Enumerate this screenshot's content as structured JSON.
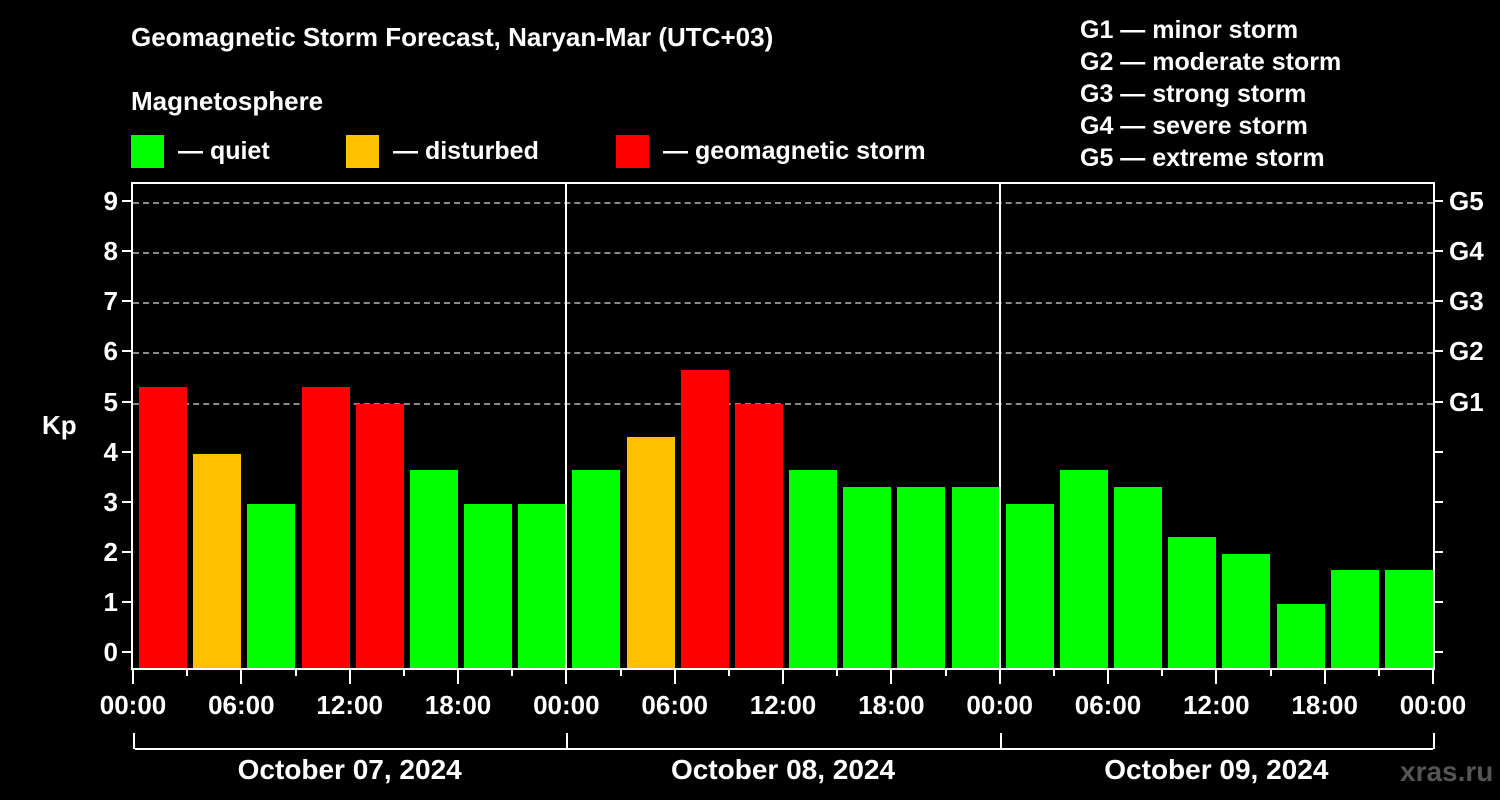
{
  "header": {
    "title": "Geomagnetic Storm Forecast, Naryan-Mar (UTC+03)",
    "subtitle": "Magnetosphere"
  },
  "legend": {
    "items": [
      {
        "label": "— quiet",
        "color": "#00ff00"
      },
      {
        "label": "— disturbed",
        "color": "#ffc000"
      },
      {
        "label": "— geomagnetic storm",
        "color": "#ff0000"
      }
    ]
  },
  "scale_legend": [
    "G1 — minor storm",
    "G2 — moderate storm",
    "G3 — strong storm",
    "G4 — severe storm",
    "G5 — extreme storm"
  ],
  "axis": {
    "ylabel": "Kp",
    "yticks": [
      "0",
      "1",
      "2",
      "3",
      "4",
      "5",
      "6",
      "7",
      "8",
      "9"
    ],
    "right_ticks": [
      "G1",
      "G2",
      "G3",
      "G4",
      "G5"
    ],
    "xticks": [
      "00:00",
      "06:00",
      "12:00",
      "18:00",
      "00:00",
      "06:00",
      "12:00",
      "18:00",
      "00:00",
      "06:00",
      "12:00",
      "18:00",
      "00:00"
    ],
    "dates": [
      "October 07, 2024",
      "October 08, 2024",
      "October 09, 2024"
    ]
  },
  "watermark": "xras.ru",
  "chart_data": {
    "type": "bar",
    "title": "Geomagnetic Storm Forecast, Naryan-Mar (UTC+03)",
    "xlabel": "",
    "ylabel": "Kp",
    "ylim": [
      0,
      9
    ],
    "grid": true,
    "legend_position": "top",
    "categories": [
      "Oct 07 00-03",
      "Oct 07 03-06",
      "Oct 07 06-09",
      "Oct 07 09-12",
      "Oct 07 12-15",
      "Oct 07 15-18",
      "Oct 07 18-21",
      "Oct 07 21-24",
      "Oct 08 00-03",
      "Oct 08 03-06",
      "Oct 08 06-09",
      "Oct 08 09-12",
      "Oct 08 12-15",
      "Oct 08 15-18",
      "Oct 08 18-21",
      "Oct 08 21-24",
      "Oct 09 00-03",
      "Oct 09 03-06",
      "Oct 09 06-09",
      "Oct 09 09-12",
      "Oct 09 12-15",
      "Oct 09 15-18",
      "Oct 09 18-21",
      "Oct 09 21-24"
    ],
    "values": [
      5.33,
      4.0,
      3.0,
      5.33,
      5.0,
      3.67,
      3.0,
      3.0,
      3.67,
      4.33,
      5.67,
      5.0,
      3.67,
      3.33,
      3.33,
      3.33,
      3.0,
      3.67,
      3.33,
      2.33,
      2.0,
      1.0,
      1.67,
      1.67
    ],
    "status": [
      "storm",
      "disturbed",
      "quiet",
      "storm",
      "storm",
      "quiet",
      "quiet",
      "quiet",
      "quiet",
      "disturbed",
      "storm",
      "storm",
      "quiet",
      "quiet",
      "quiet",
      "quiet",
      "quiet",
      "quiet",
      "quiet",
      "quiet",
      "quiet",
      "quiet",
      "quiet",
      "quiet"
    ],
    "colors": {
      "quiet": "#00ff00",
      "disturbed": "#ffc000",
      "storm": "#ff0000"
    },
    "right_axis": {
      "G1": 5,
      "G2": 6,
      "G3": 7,
      "G4": 8,
      "G5": 9
    }
  }
}
